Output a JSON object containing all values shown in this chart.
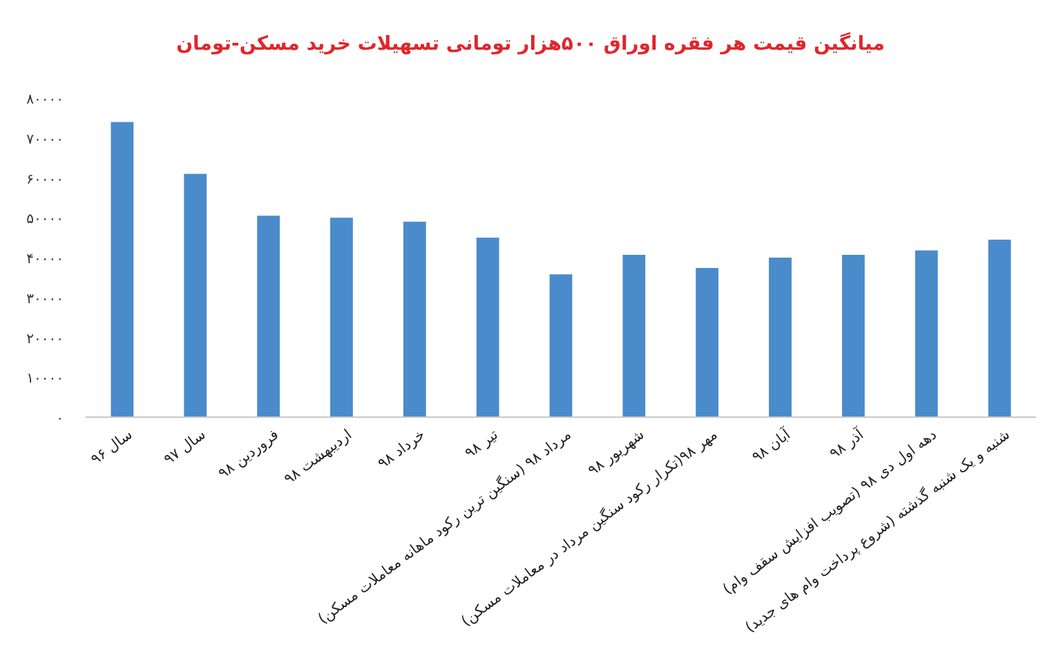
{
  "chart_data": {
    "type": "bar",
    "title": "میانگین قیمت هر فقره اوراق ۵۰۰هزار تومانی تسهیلات خرید مسکن-تومان",
    "categories": [
      "سال ۹۶",
      "سال ۹۷",
      "فروردین ۹۸",
      "اردیبهشت ۹۸",
      "خرداد ۹۸",
      "تیر ۹۸",
      "مرداد ۹۸ (سنگین ترین رکود ماهانه معاملات مسکن)",
      "شهریور ۹۸",
      "مهر ۹۸(تکرار رکود سنگین مرداد در معاملات مسکن)",
      "آبان ۹۸",
      "آذر ۹۸",
      "دهه اول دی ۹۸ (تصویب افزایش سقف وام)",
      "شنبه و یک شنبه گذشته (شروع پرداخت وام های جدید)"
    ],
    "values": [
      74000,
      61000,
      50500,
      50000,
      49000,
      45000,
      35800,
      40700,
      37400,
      40000,
      40700,
      41800,
      44500
    ],
    "color": "#4a8bcb",
    "ylim": [
      0,
      80000
    ],
    "yticks": [
      {
        "value": 0,
        "label": "۰"
      },
      {
        "value": 10000,
        "label": "۱۰۰۰۰"
      },
      {
        "value": 20000,
        "label": "۲۰۰۰۰"
      },
      {
        "value": 30000,
        "label": "۳۰۰۰۰"
      },
      {
        "value": 40000,
        "label": "۴۰۰۰۰"
      },
      {
        "value": 50000,
        "label": "۵۰۰۰۰"
      },
      {
        "value": 60000,
        "label": "۶۰۰۰۰"
      },
      {
        "value": 70000,
        "label": "۷۰۰۰۰"
      },
      {
        "value": 80000,
        "label": "۸۰۰۰۰"
      }
    ],
    "grid": false
  }
}
